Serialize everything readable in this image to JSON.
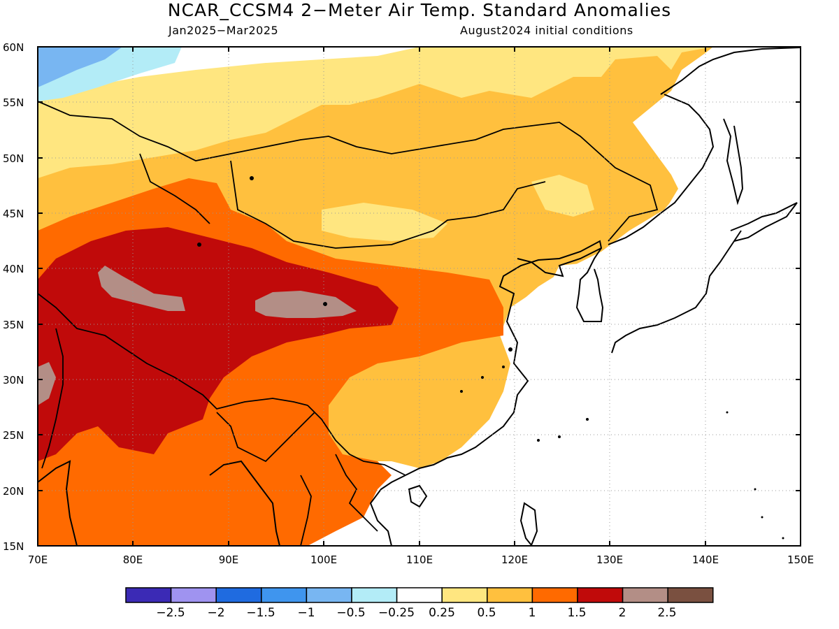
{
  "title": "NCAR_CCSM4 2−Meter Air Temp. Standard Anomalies",
  "subtitle_left": "Jan2025−Mar2025",
  "subtitle_right": "August2024 initial conditions",
  "map": {
    "lon_range": [
      70,
      150
    ],
    "lat_range": [
      15,
      60
    ],
    "lon_ticks": [
      "70E",
      "80E",
      "90E",
      "100E",
      "110E",
      "120E",
      "130E",
      "140E",
      "150E"
    ],
    "lat_ticks": [
      "15N",
      "20N",
      "25N",
      "30N",
      "35N",
      "40N",
      "45N",
      "50N",
      "55N",
      "60N"
    ],
    "grid": "dotted"
  },
  "colorbar": {
    "colors": [
      "#3b2ab5",
      "#9f93f0",
      "#1f6be0",
      "#3f95ee",
      "#78b6f2",
      "#b3ecf7",
      "#ffffff",
      "#ffe680",
      "#ffc03e",
      "#ff6a00",
      "#c00a0a",
      "#b38e86",
      "#7a5040"
    ],
    "labels": [
      "−2.5",
      "−2",
      "−1.5",
      "−1",
      "−0.5",
      "−0.25",
      "0.25",
      "0.5",
      "1",
      "1.5",
      "2",
      "2.5"
    ]
  },
  "colors": {
    "coast": "#000000",
    "grid": "#9a9a9a"
  }
}
